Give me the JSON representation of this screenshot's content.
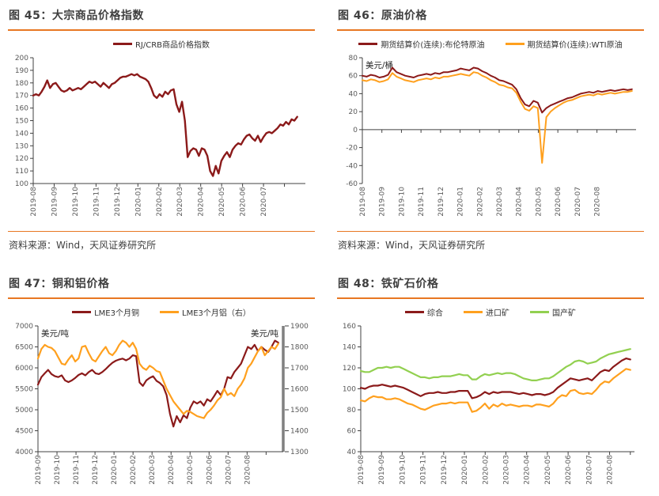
{
  "accent": {
    "separator_orange": "#E87722",
    "dark_red": "#8B1A1A",
    "orange": "#FFA01E",
    "green": "#92D050"
  },
  "source_label": "资料来源：Wind，天风证券研究所",
  "panels": [
    {
      "title": "图 45：大宗商品价格指数"
    },
    {
      "title": "图 46：原油价格"
    },
    {
      "title": "图 47：铜和铝价格"
    },
    {
      "title": "图 48：铁矿石价格"
    }
  ],
  "chart_data": [
    {
      "id": "fig45",
      "type": "line",
      "title": "大宗商品价格指数",
      "ylim": [
        100,
        200
      ],
      "ystep": 10,
      "x_labels": [
        "2019-08",
        "2019-09",
        "2019-10",
        "2019-11",
        "2019-12",
        "2020-01",
        "2020-02",
        "2020-03",
        "2020-04",
        "2020-05",
        "2020-06",
        "2020-07"
      ],
      "x_denom": 13,
      "x_span": 0.97,
      "line_width": 2.4,
      "grid": false,
      "legend_position": "top",
      "margin": {
        "l": 32,
        "r": 12,
        "t": 8,
        "b": 48
      },
      "series": [
        {
          "name": "RJ/CRB商品价格指数",
          "color": "#8B1A1A",
          "values": [
            170,
            171,
            170,
            173,
            177,
            182,
            176,
            179,
            180,
            177,
            174,
            173,
            174,
            176,
            174,
            175,
            176,
            175,
            177,
            179,
            181,
            180,
            181,
            179,
            177,
            180,
            178,
            176,
            179,
            180,
            182,
            184,
            185,
            185,
            186,
            187,
            186,
            187,
            185,
            184,
            183,
            181,
            176,
            170,
            168,
            171,
            169,
            173,
            171,
            174,
            175,
            163,
            157,
            165,
            150,
            121,
            126,
            128,
            127,
            122,
            128,
            127,
            122,
            110,
            106,
            114,
            108,
            118,
            122,
            125,
            121,
            127,
            130,
            132,
            131,
            135,
            138,
            139,
            136,
            134,
            138,
            133,
            137,
            140,
            141,
            140,
            142,
            144,
            147,
            146,
            149,
            147,
            151,
            150,
            153
          ]
        }
      ]
    },
    {
      "id": "fig46",
      "type": "line",
      "title": "原油价格",
      "unit_left": "美元/桶",
      "ylim": [
        -60,
        80
      ],
      "ystep": 20,
      "x_axis_at_zero": true,
      "x_labels": [
        "2019-08",
        "2019-09",
        "2019-10",
        "2019-11",
        "2019-12",
        "2020-01",
        "2020-02",
        "2020-03",
        "2020-04",
        "2020-05",
        "2020-06",
        "2020-07",
        "2020-08"
      ],
      "x_denom": 14,
      "x_span": 0.985,
      "line_width": 2,
      "grid": false,
      "legend_position": "top",
      "margin": {
        "l": 32,
        "r": 10,
        "t": 8,
        "b": 48
      },
      "series": [
        {
          "name": "期货结算价(连续):布伦特原油",
          "color": "#8B1A1A",
          "values": [
            60,
            59,
            61,
            60,
            58,
            59,
            61,
            69,
            64,
            62,
            60,
            59,
            58,
            60,
            61,
            62,
            61,
            63,
            62,
            64,
            64,
            65,
            66,
            68,
            67,
            66,
            69,
            68,
            65,
            63,
            60,
            58,
            55,
            54,
            52,
            50,
            45,
            35,
            28,
            26,
            32,
            30,
            19,
            24,
            27,
            29,
            31,
            33,
            35,
            36,
            38,
            40,
            41,
            42,
            41,
            43,
            42,
            43,
            44,
            43,
            44,
            45,
            44,
            45
          ]
        },
        {
          "name": "期货结算价(连续):WTI原油",
          "color": "#FFA01E",
          "values": [
            55,
            54,
            56,
            55,
            53,
            54,
            56,
            63,
            59,
            57,
            55,
            54,
            53,
            55,
            56,
            57,
            56,
            58,
            57,
            59,
            59,
            60,
            61,
            62,
            61,
            60,
            64,
            63,
            60,
            58,
            55,
            53,
            50,
            49,
            47,
            46,
            41,
            31,
            23,
            21,
            26,
            24,
            -37,
            14,
            20,
            24,
            27,
            30,
            32,
            33,
            35,
            37,
            38,
            39,
            38,
            40,
            39,
            40,
            41,
            40,
            41,
            42,
            42,
            43
          ]
        }
      ]
    },
    {
      "id": "fig47",
      "type": "line",
      "title": "铜和铝价格",
      "unit_left": "美元/吨",
      "unit_right": "美元/吨",
      "ylim": [
        4000,
        7000
      ],
      "ystep": 500,
      "ylim_right": [
        1300,
        1900
      ],
      "ystep_right": 100,
      "x_labels": [
        "2019-09",
        "2019-10",
        "2019-11",
        "2019-12",
        "2020-01",
        "2020-02",
        "2020-03",
        "2020-04",
        "2020-05",
        "2020-06",
        "2020-07",
        "2020-08"
      ],
      "x_denom": 12.9,
      "x_span": 0.98,
      "line_width": 2.2,
      "grid": false,
      "legend_position": "top",
      "margin": {
        "l": 38,
        "r": 40,
        "t": 8,
        "b": 48
      },
      "series": [
        {
          "name": "LME3个月铜",
          "color": "#8B1A1A",
          "axis": "left",
          "values": [
            5600,
            5780,
            5870,
            5950,
            5850,
            5800,
            5780,
            5820,
            5700,
            5660,
            5700,
            5760,
            5830,
            5870,
            5820,
            5900,
            5950,
            5870,
            5850,
            5900,
            5970,
            6050,
            6120,
            6170,
            6200,
            6220,
            6180,
            6220,
            6300,
            6280,
            5650,
            5570,
            5700,
            5760,
            5800,
            5690,
            5640,
            5560,
            5350,
            4900,
            4600,
            4850,
            4700,
            4870,
            4800,
            5050,
            5200,
            5150,
            5200,
            5100,
            5250,
            5200,
            5320,
            5450,
            5350,
            5500,
            5780,
            5750,
            5900,
            6000,
            6100,
            6300,
            6500,
            6450,
            6550,
            6400,
            6500,
            6430,
            6380,
            6500,
            6650,
            6600
          ]
        },
        {
          "name": "LME3个月铝（右）",
          "color": "#FFA01E",
          "axis": "right",
          "values": [
            1745,
            1790,
            1810,
            1800,
            1795,
            1780,
            1750,
            1720,
            1715,
            1740,
            1760,
            1730,
            1745,
            1800,
            1805,
            1770,
            1740,
            1730,
            1755,
            1780,
            1800,
            1770,
            1760,
            1780,
            1810,
            1830,
            1820,
            1800,
            1820,
            1790,
            1720,
            1700,
            1690,
            1710,
            1700,
            1685,
            1680,
            1640,
            1600,
            1570,
            1540,
            1520,
            1500,
            1480,
            1495,
            1490,
            1480,
            1470,
            1465,
            1460,
            1485,
            1500,
            1520,
            1545,
            1560,
            1600,
            1570,
            1580,
            1565,
            1600,
            1620,
            1650,
            1700,
            1720,
            1750,
            1780,
            1800,
            1760,
            1780,
            1800,
            1790,
            1815
          ]
        }
      ]
    },
    {
      "id": "fig48",
      "type": "line",
      "title": "铁矿石价格",
      "ylim": [
        40,
        160
      ],
      "ystep": 20,
      "x_labels": [
        "2019-08",
        "2019-09",
        "2019-10",
        "2019-11",
        "2019-12",
        "2020-01",
        "2020-02",
        "2020-03",
        "2020-04",
        "2020-05",
        "2020-06",
        "2020-07",
        "2020-08"
      ],
      "x_denom": 13.2,
      "x_span": 0.985,
      "line_width": 2.2,
      "grid": false,
      "legend_position": "top",
      "margin": {
        "l": 30,
        "r": 12,
        "t": 8,
        "b": 48
      },
      "series": [
        {
          "name": "综合",
          "color": "#8B1A1A",
          "values": [
            101,
            100,
            102,
            103,
            103,
            104,
            103,
            102,
            103,
            102,
            101,
            99,
            97,
            95,
            93,
            95,
            96,
            96,
            97,
            96,
            96,
            97,
            97,
            98,
            98,
            98,
            91,
            92,
            94,
            97,
            95,
            97,
            96,
            97,
            97,
            97,
            96,
            95,
            96,
            95,
            94,
            95,
            95,
            94,
            95,
            97,
            101,
            104,
            107,
            110,
            109,
            108,
            109,
            110,
            108,
            112,
            116,
            118,
            117,
            121,
            124,
            127,
            129,
            128
          ]
        },
        {
          "name": "进口矿",
          "color": "#FFA01E",
          "values": [
            89,
            88,
            91,
            93,
            92,
            92,
            90,
            90,
            91,
            90,
            88,
            86,
            85,
            83,
            81,
            80,
            82,
            84,
            85,
            86,
            86,
            87,
            86,
            87,
            87,
            87,
            78,
            79,
            82,
            86,
            81,
            85,
            83,
            86,
            84,
            85,
            84,
            83,
            84,
            84,
            83,
            85,
            85,
            84,
            83,
            86,
            91,
            94,
            93,
            98,
            99,
            96,
            95,
            96,
            95,
            99,
            104,
            107,
            106,
            110,
            113,
            116,
            119,
            118
          ]
        },
        {
          "name": "国产矿",
          "color": "#92D050",
          "values": [
            117,
            116,
            116,
            118,
            120,
            120,
            121,
            120,
            121,
            121,
            119,
            117,
            115,
            113,
            111,
            111,
            110,
            111,
            111,
            112,
            112,
            112,
            113,
            114,
            113,
            113,
            109,
            109,
            112,
            114,
            113,
            114,
            115,
            114,
            115,
            115,
            114,
            112,
            110,
            109,
            108,
            108,
            109,
            110,
            110,
            112,
            115,
            118,
            121,
            123,
            126,
            127,
            126,
            124,
            125,
            126,
            129,
            131,
            133,
            134,
            135,
            136,
            137,
            138
          ]
        }
      ]
    }
  ]
}
